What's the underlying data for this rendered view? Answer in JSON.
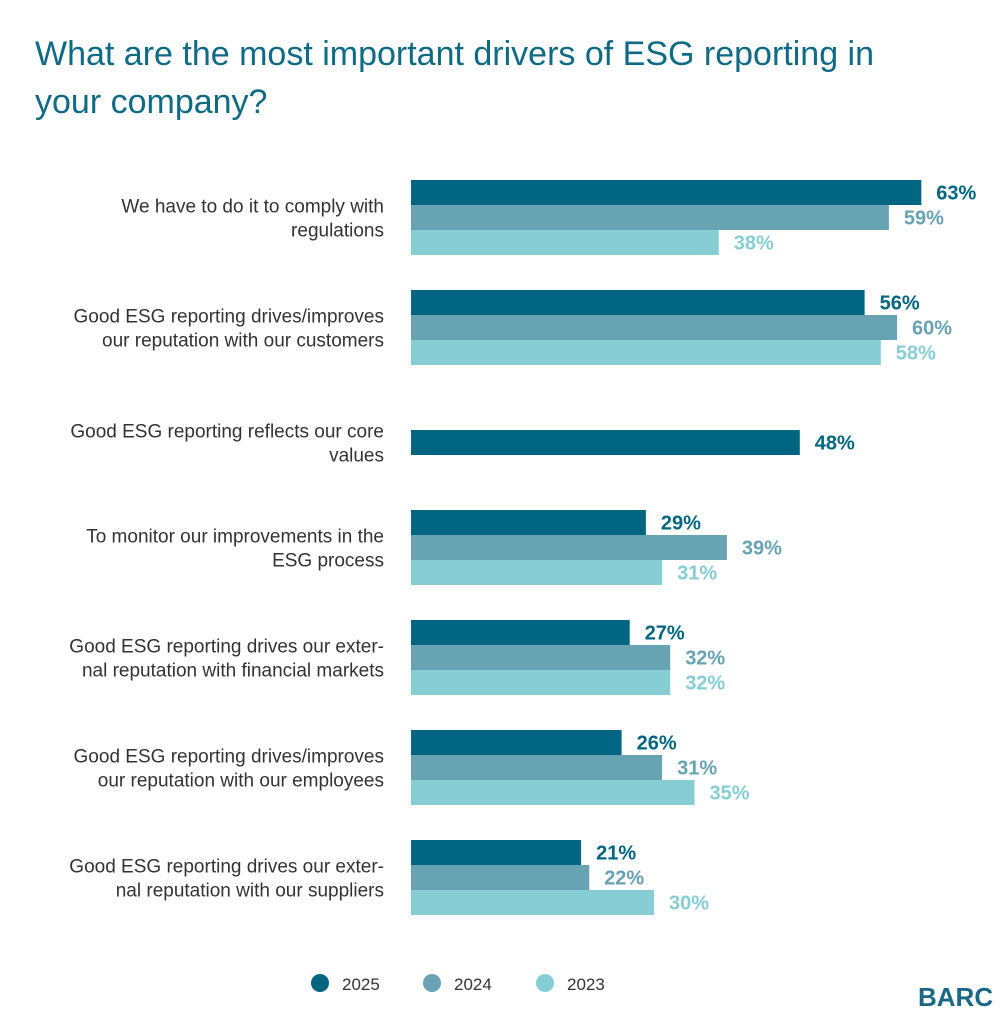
{
  "colors": {
    "title": "#0f6a86",
    "series": [
      "#006580",
      "#67a3b3",
      "#86ced4"
    ],
    "logo": "#1a6787"
  },
  "logo_text": "BARC",
  "chart_data": {
    "type": "bar",
    "orientation": "horizontal",
    "title": "What are the most important drivers of ESG reporting in your company?",
    "categories": [
      [
        "We have to do it to comply with",
        "regulations"
      ],
      [
        "Good ESG reporting drives/improves",
        "our reputation with our customers"
      ],
      [
        "Good ESG reporting reflects our core",
        "values"
      ],
      [
        "To monitor our improvements in the",
        "ESG process"
      ],
      [
        "Good ESG reporting drives our exter-",
        "nal reputation with financial markets"
      ],
      [
        "Good ESG reporting drives/improves",
        "our reputation with our employees"
      ],
      [
        "Good ESG reporting drives our exter-",
        "nal reputation with our suppliers"
      ]
    ],
    "series": [
      {
        "name": "2025",
        "values": [
          63,
          56,
          48,
          29,
          27,
          26,
          21
        ]
      },
      {
        "name": "2024",
        "values": [
          59,
          60,
          null,
          39,
          32,
          31,
          22
        ]
      },
      {
        "name": "2023",
        "values": [
          38,
          58,
          null,
          31,
          32,
          35,
          30
        ]
      }
    ],
    "value_suffix": "%",
    "legend_position": "bottom",
    "grid": false
  }
}
